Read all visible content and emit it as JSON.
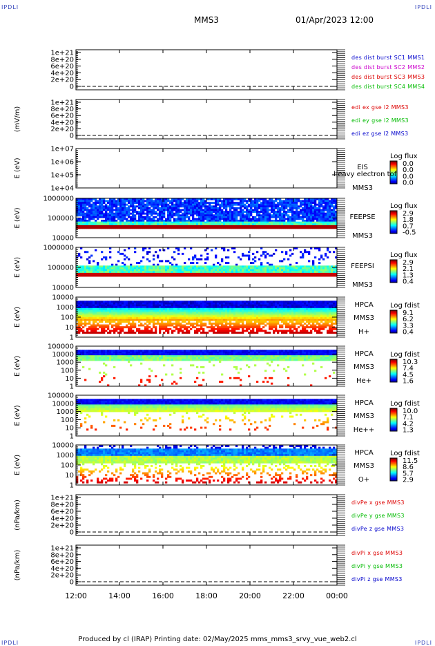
{
  "corner_label": "IPDLI",
  "title": "MMS3",
  "datetime": "01/Apr/2023 12:00",
  "footer": "Produced by cl (IRAP)   Printing date: 02/May/2025   mms_mms3_srvy_vue_web2.cl",
  "time_ticks": [
    "12:00",
    "14:00",
    "16:00",
    "18:00",
    "20:00",
    "22:00",
    "00:00"
  ],
  "chart_data": [
    {
      "type": "line",
      "ylabel": "",
      "y_ticks": [
        "1e+21",
        "8e+20",
        "6e+20",
        "4e+20",
        "2e+20",
        "0"
      ],
      "legend": [
        {
          "text": "des dist burst SC1 MMS1",
          "color": "#0000cc"
        },
        {
          "text": "des dist burst SC2 MMS2",
          "color": "#cc00cc"
        },
        {
          "text": "des dist burst SC3 MMS3",
          "color": "#dd0000"
        },
        {
          "text": "des dist burst SC4 MMS4",
          "color": "#00bb00"
        }
      ]
    },
    {
      "type": "line",
      "ylabel": "(mV/m)",
      "y_ticks": [
        "1e+21",
        "8e+20",
        "6e+20",
        "4e+20",
        "2e+20",
        "0"
      ],
      "legend": [
        {
          "text": "edi ex gse l2 MMS3",
          "color": "#dd0000"
        },
        {
          "text": "edi ey gse l2 MMS3",
          "color": "#00bb00"
        },
        {
          "text": "edi ez gse l2 MMS3",
          "color": "#0000cc"
        }
      ]
    },
    {
      "type": "heatmap",
      "ylabel": "E (eV)",
      "y_ticks": [
        "1e+07",
        "1e+06",
        "1e+05",
        "1e+04"
      ],
      "labels": [
        "EIS",
        "MMS3"
      ],
      "overlay_text": "heavy electron tof",
      "colorbar_title": "Log flux",
      "colorbar_ticks": [
        "0.0",
        "0.0",
        "0.0",
        "0.0"
      ],
      "coverage": "empty"
    },
    {
      "type": "heatmap",
      "ylabel": "E (eV)",
      "y_ticks": [
        "1000000",
        "100000",
        "10000"
      ],
      "labels": [
        "FEEPSE",
        "MMS3"
      ],
      "colorbar_title": "Log flux",
      "colorbar_ticks": [
        "2.9",
        "1.8",
        "0.7",
        "-0.5"
      ]
    },
    {
      "type": "heatmap",
      "ylabel": "E (eV)",
      "y_ticks": [
        "1000000",
        "100000",
        "10000"
      ],
      "labels": [
        "FEEPSI",
        "MMS3"
      ],
      "colorbar_title": "Log flux",
      "colorbar_ticks": [
        "2.9",
        "2.1",
        "1.3",
        "0.4"
      ]
    },
    {
      "type": "heatmap",
      "ylabel": "E (eV)",
      "y_ticks": [
        "10000",
        "1000",
        "100",
        "10",
        "1"
      ],
      "labels": [
        "HPCA",
        "MMS3",
        "H+"
      ],
      "colorbar_title": "Log fdist",
      "colorbar_ticks": [
        "9.1",
        "6.2",
        "3.3",
        "0.4"
      ]
    },
    {
      "type": "heatmap",
      "ylabel": "E (eV)",
      "y_ticks": [
        "100000",
        "10000",
        "1000",
        "100",
        "10",
        "1"
      ],
      "labels": [
        "HPCA",
        "MMS3",
        "He+"
      ],
      "colorbar_title": "Log fdist",
      "colorbar_ticks": [
        "10.3",
        "7.4",
        "4.5",
        "1.6"
      ]
    },
    {
      "type": "heatmap",
      "ylabel": "E (eV)",
      "y_ticks": [
        "100000",
        "10000",
        "1000",
        "100",
        "10",
        "1"
      ],
      "labels": [
        "HPCA",
        "MMS3",
        "He++"
      ],
      "colorbar_title": "Log fdist",
      "colorbar_ticks": [
        "10.0",
        "7.1",
        "4.2",
        "1.3"
      ]
    },
    {
      "type": "heatmap",
      "ylabel": "E (eV)",
      "y_ticks": [
        "10000",
        "1000",
        "100",
        "10",
        "1"
      ],
      "labels": [
        "HPCA",
        "MMS3",
        "O+"
      ],
      "colorbar_title": "Log fdist",
      "colorbar_ticks": [
        "11.5",
        "8.6",
        "5.7",
        "2.9"
      ]
    },
    {
      "type": "line",
      "ylabel": "(nPa/km)",
      "y_ticks": [
        "1e+21",
        "8e+20",
        "6e+20",
        "4e+20",
        "2e+20",
        "0"
      ],
      "legend": [
        {
          "text": "divPe x gse MMS3",
          "color": "#dd0000"
        },
        {
          "text": "divPe y gse MMS3",
          "color": "#00bb00"
        },
        {
          "text": "divPe z gse MMS3",
          "color": "#0000cc"
        }
      ]
    },
    {
      "type": "line",
      "ylabel": "(nPa/km)",
      "y_ticks": [
        "1e+21",
        "8e+20",
        "6e+20",
        "4e+20",
        "2e+20",
        "0"
      ],
      "legend": [
        {
          "text": "divPi x gse MMS3",
          "color": "#dd0000"
        },
        {
          "text": "divPi y gse MMS3",
          "color": "#00bb00"
        },
        {
          "text": "divPi z gse MMS3",
          "color": "#0000cc"
        }
      ]
    }
  ]
}
